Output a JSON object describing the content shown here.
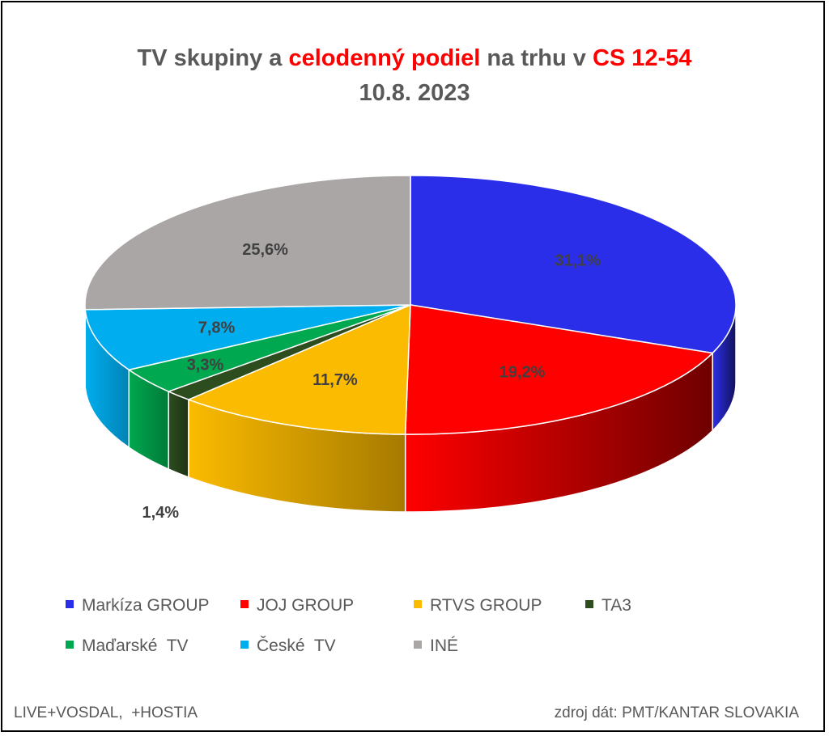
{
  "title": {
    "line1_a": "TV skupiny a ",
    "line1_b": "celodenný podiel",
    "line1_c": " na trhu v ",
    "line1_d": "CS 12-54",
    "line2": "10.8. 2023"
  },
  "footnotes": {
    "left": "LIVE+VOSDAL,  +HOSTIA",
    "right": "zdroj dát: PMT/KANTAR SLOVAKIA"
  },
  "chart_data": {
    "type": "pie",
    "style": "3d",
    "title": "TV skupiny a celodenný podiel na trhu v CS 12-54 10.8. 2023",
    "legend_position": "bottom",
    "data_labels": true,
    "slices": [
      {
        "name": "Markíza GROUP",
        "value": 31.1,
        "label": "31,1%",
        "color": "#2b2ee8",
        "side": "#12125a"
      },
      {
        "name": "JOJ GROUP",
        "value": 19.2,
        "label": "19,2%",
        "color": "#ff0000",
        "side": "#6e0000"
      },
      {
        "name": "RTVS GROUP",
        "value": 11.7,
        "label": "11,7%",
        "color": "#fbbb00",
        "side": "#a67a00"
      },
      {
        "name": "TA3",
        "value": 1.4,
        "label": "1,4%",
        "color": "#2d4d1f",
        "side": "#1e3314"
      },
      {
        "name": "Maďarské  TV",
        "value": 3.3,
        "label": "3,3%",
        "color": "#00a84f",
        "side": "#007a38"
      },
      {
        "name": "České  TV",
        "value": 7.8,
        "label": "7,8%",
        "color": "#00aeef",
        "side": "#0083b5"
      },
      {
        "name": "INÉ",
        "value": 25.6,
        "label": "25,6%",
        "color": "#aaa6a6",
        "side": "#777373"
      }
    ]
  }
}
